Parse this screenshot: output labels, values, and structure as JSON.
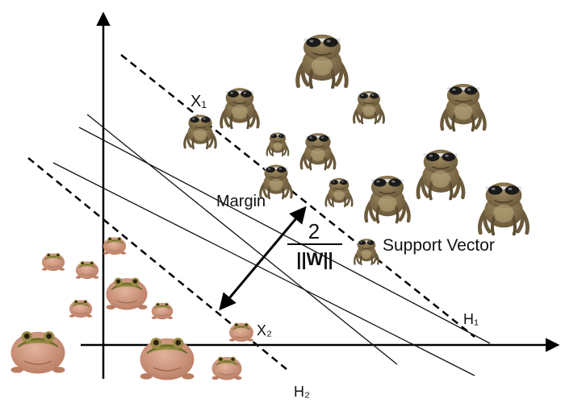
{
  "labels": {
    "x1": "X₁",
    "x2": "X₂",
    "h1": "H₁",
    "h2": "H₂",
    "margin": "Margin",
    "support_vector": "Support Vector",
    "fraction_numerator": "2",
    "fraction_denominator": "||W||"
  },
  "colors": {
    "axis": "#000000",
    "toad_body": "#8a7650",
    "toad_shade": "#5e4e33",
    "sunglasses": "#1a1a1a",
    "frog_body": "#c88f76",
    "frog_back": "#8f8a3e"
  },
  "icons": {
    "toad": "toad-with-sunglasses-icon",
    "frog": "round-frog-icon"
  }
}
